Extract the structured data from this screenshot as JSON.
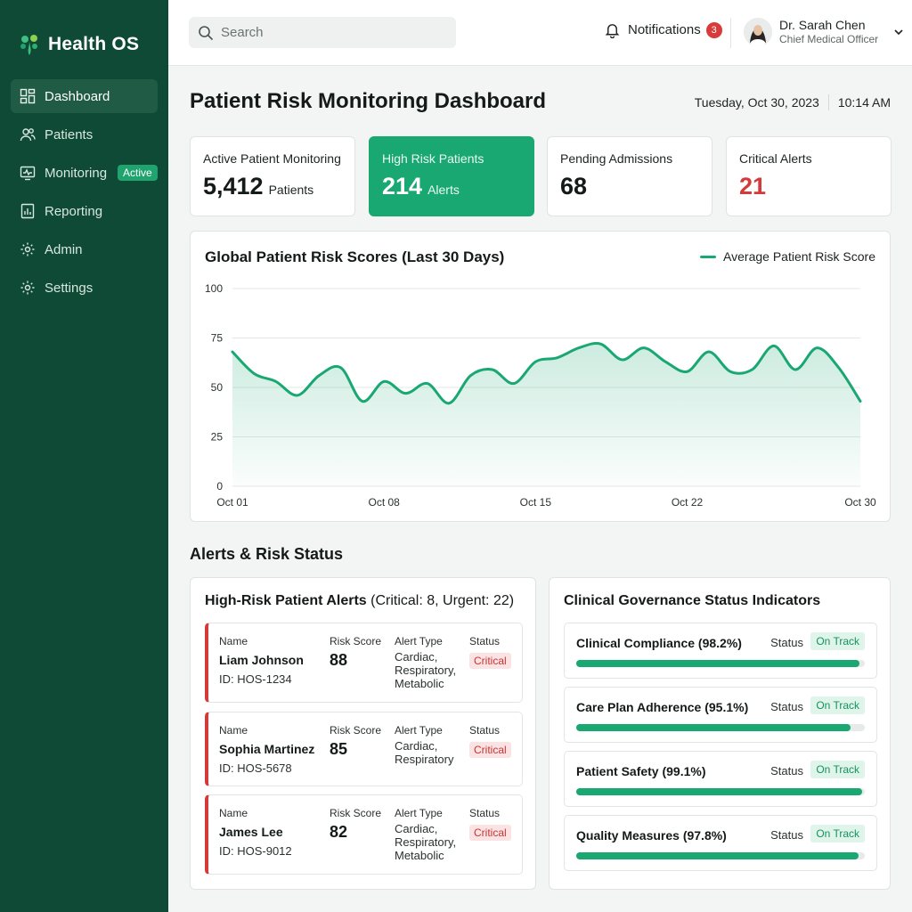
{
  "app": {
    "name": "Health OS"
  },
  "sidebar": {
    "items": [
      {
        "label": "Dashboard",
        "icon": "grid-icon"
      },
      {
        "label": "Patients",
        "icon": "users-icon"
      },
      {
        "label": "Monitoring",
        "icon": "monitor-icon",
        "badge": "Active"
      },
      {
        "label": "Reporting",
        "icon": "report-icon"
      },
      {
        "label": "Admin",
        "icon": "gear-icon"
      },
      {
        "label": "Settings",
        "icon": "gear-icon"
      }
    ]
  },
  "topbar": {
    "search_placeholder": "Search",
    "notifications_label": "Notifications",
    "notifications_count": "3",
    "user_name": "Dr. Sarah Chen",
    "user_role": "Chief Medical Officer"
  },
  "page": {
    "title": "Patient Risk Monitoring Dashboard",
    "date": "Tuesday, Oct 30, 2023",
    "time": "10:14 AM"
  },
  "stats": [
    {
      "label": "Active Patient Monitoring",
      "value": "5,412",
      "unit": "Patients"
    },
    {
      "label": "High Risk Patients",
      "value": "214",
      "unit": "Alerts"
    },
    {
      "label": "Pending Admissions",
      "value": "68",
      "unit": ""
    },
    {
      "label": "Critical Alerts",
      "value": "21",
      "unit": ""
    }
  ],
  "colors": {
    "brand": "#0e4a35",
    "accent": "#19a772",
    "critical": "#d33b3b"
  },
  "chart_data": {
    "type": "area",
    "title": "Global Patient Risk Scores (Last 30 Days)",
    "legend_position": "top-right",
    "grid": true,
    "ylim": [
      0,
      100
    ],
    "yticks": [
      "0",
      "25",
      "50",
      "75",
      "100"
    ],
    "xticks": [
      {
        "day": 1,
        "label": "Oct 01"
      },
      {
        "day": 8,
        "label": "Oct 08"
      },
      {
        "day": 15,
        "label": "Oct 15"
      },
      {
        "day": 22,
        "label": "Oct 22"
      },
      {
        "day": 30,
        "label": "Oct 30"
      }
    ],
    "series": [
      {
        "name": "Average Patient Risk Score",
        "color": "#19a772",
        "x": [
          1,
          2,
          3,
          4,
          5,
          6,
          7,
          8,
          9,
          10,
          11,
          12,
          13,
          14,
          15,
          16,
          17,
          18,
          19,
          20,
          21,
          22,
          23,
          24,
          25,
          26,
          27,
          28,
          29,
          30
        ],
        "values": [
          68,
          57,
          53,
          46,
          56,
          60,
          43,
          53,
          47,
          52,
          42,
          56,
          59,
          52,
          63,
          65,
          70,
          72,
          64,
          70,
          63,
          58,
          68,
          58,
          59,
          71,
          59,
          70,
          60,
          43
        ]
      }
    ]
  },
  "alerts": {
    "section_title": "Alerts & Risk Status",
    "title": "High-Risk Patient Alerts",
    "summary": "(Critical: 8, Urgent: 22)",
    "labels": {
      "name": "Name",
      "score": "Risk Score",
      "type": "Alert Type",
      "status": "Status"
    },
    "rows": [
      {
        "name": "Liam Johnson",
        "id": "ID: HOS-1234",
        "score": "88",
        "type": "Cardiac, Respiratory, Metabolic",
        "status": "Critical"
      },
      {
        "name": "Sophia Martinez",
        "id": "ID: HOS-5678",
        "score": "85",
        "type": "Cardiac, Respiratory",
        "status": "Critical"
      },
      {
        "name": "James Lee",
        "id": "ID: HOS-9012",
        "score": "82",
        "type": "Cardiac, Respiratory, Metabolic",
        "status": "Critical"
      }
    ]
  },
  "governance": {
    "title": "Clinical Governance Status Indicators",
    "status_label": "Status",
    "items": [
      {
        "label": "Clinical Compliance (98.2%)",
        "status": "On Track",
        "progress": 0.982
      },
      {
        "label": "Care Plan Adherence (95.1%)",
        "status": "On Track",
        "progress": 0.951
      },
      {
        "label": "Patient Safety (99.1%)",
        "status": "On Track",
        "progress": 0.991
      },
      {
        "label": "Quality Measures (97.8%)",
        "status": "On Track",
        "progress": 0.978
      }
    ]
  }
}
